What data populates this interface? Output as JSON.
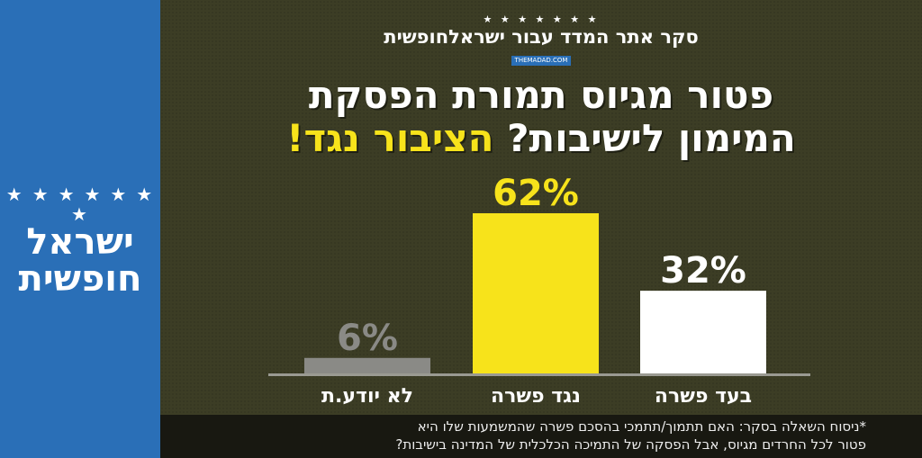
{
  "sidebar": {
    "logo_stars": "★ ★ ★ ★ ★ ★ ★",
    "logo_line1": "ישראל",
    "logo_line2": "חופשית",
    "color": "#2a6fb7"
  },
  "masthead": {
    "stars": "★ ★ ★ ★ ★ ★ ★",
    "text": "סקר אתר המדד עבור ישראלחופשית",
    "site": "THEMADAD.COM"
  },
  "headline": {
    "line1": "פטור מגיוס תמורת הפסקת",
    "line2_white": "המימון לישיבות?",
    "line2_yellow": "הציבור נגד!"
  },
  "chart_data": {
    "type": "bar",
    "categories": [
      "בעד פשרה",
      "נגד פשרה",
      "לא יודע.ת"
    ],
    "values": [
      32,
      62,
      6
    ],
    "data_labels": [
      "32%",
      "62%",
      "6%"
    ],
    "colors": [
      "#ffffff",
      "#f7e31b",
      "#8a8a86"
    ],
    "label_colors": [
      "#ffffff",
      "#f7e31b",
      "#8a8a86"
    ],
    "ylim": [
      0,
      62
    ],
    "grid": false
  },
  "footnote": {
    "line1": "*ניסוח השאלה בסקר: האם תתמוך/תתמכי בהסכם פשרה שהמשמעות שלו היא",
    "line2": "פטור לכל החרדים מגיוס, אבל הפסקה של התמיכה הכלכלית של המדינה בישיבות?"
  },
  "colors": {
    "background": "#3c3d25",
    "accent_yellow": "#f7e31b",
    "footnote_bg": "#181811"
  }
}
